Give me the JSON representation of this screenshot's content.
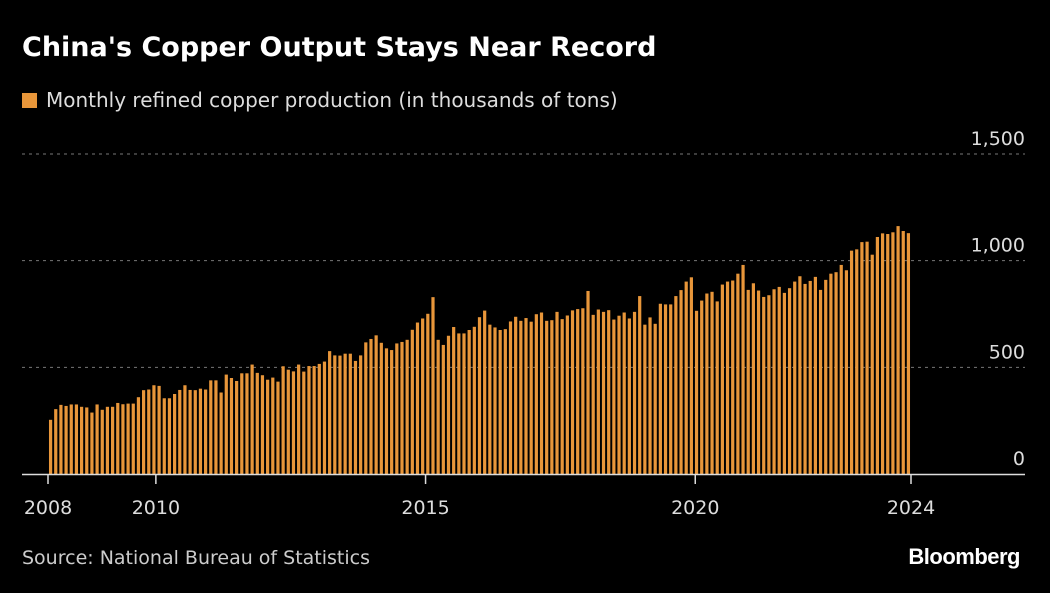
{
  "chart_data": {
    "type": "bar",
    "title": "China's Copper Output Stays Near Record",
    "legend": [
      {
        "name": "Monthly refined copper production (in thousands of tons)",
        "color": "#e8963a"
      }
    ],
    "legend_placement": "top-left",
    "source": "Source: National Bureau of Statistics",
    "brand": "Bloomberg",
    "x_ticks": [
      "2008",
      "2010",
      "2015",
      "2020",
      "2024"
    ],
    "xlim": [
      2008,
      2026
    ],
    "bars_span": [
      2008,
      2024
    ],
    "y_ticks": [
      "0",
      "500",
      "1,000",
      "1,500"
    ],
    "ylim": [
      0,
      1500
    ],
    "grid": "horizontal dashed",
    "y_axis_side": "right",
    "bar_color": "#e8963a",
    "values": [
      254,
      304,
      324,
      319,
      326,
      326,
      315,
      312,
      288,
      326,
      301,
      315,
      315,
      333,
      327,
      330,
      330,
      360,
      393,
      396,
      416,
      413,
      355,
      355,
      375,
      394,
      416,
      394,
      393,
      400,
      396,
      439,
      439,
      382,
      466,
      450,
      436,
      472,
      472,
      513,
      474,
      463,
      442,
      452,
      433,
      505,
      489,
      481,
      513,
      480,
      506,
      506,
      516,
      527,
      576,
      556,
      555,
      564,
      564,
      530,
      556,
      617,
      633,
      650,
      615,
      589,
      581,
      612,
      619,
      629,
      676,
      710,
      729,
      751,
      829,
      629,
      605,
      648,
      689,
      659,
      659,
      675,
      690,
      735,
      766,
      700,
      687,
      675,
      679,
      715,
      737,
      718,
      731,
      714,
      749,
      757,
      718,
      721,
      760,
      726,
      743,
      767,
      773,
      777,
      858,
      746,
      771,
      760,
      768,
      724,
      742,
      757,
      729,
      760,
      834,
      700,
      734,
      704,
      798,
      795,
      795,
      834,
      862,
      902,
      922,
      765,
      813,
      846,
      854,
      809,
      888,
      902,
      907,
      939,
      980,
      863,
      894,
      860,
      830,
      838,
      866,
      877,
      849,
      871,
      902,
      927,
      891,
      905,
      924,
      863,
      910,
      939,
      946,
      980,
      955,
      1047,
      1053,
      1087,
      1089,
      1028,
      1111,
      1128,
      1125,
      1133,
      1162,
      1139,
      1129
    ]
  }
}
